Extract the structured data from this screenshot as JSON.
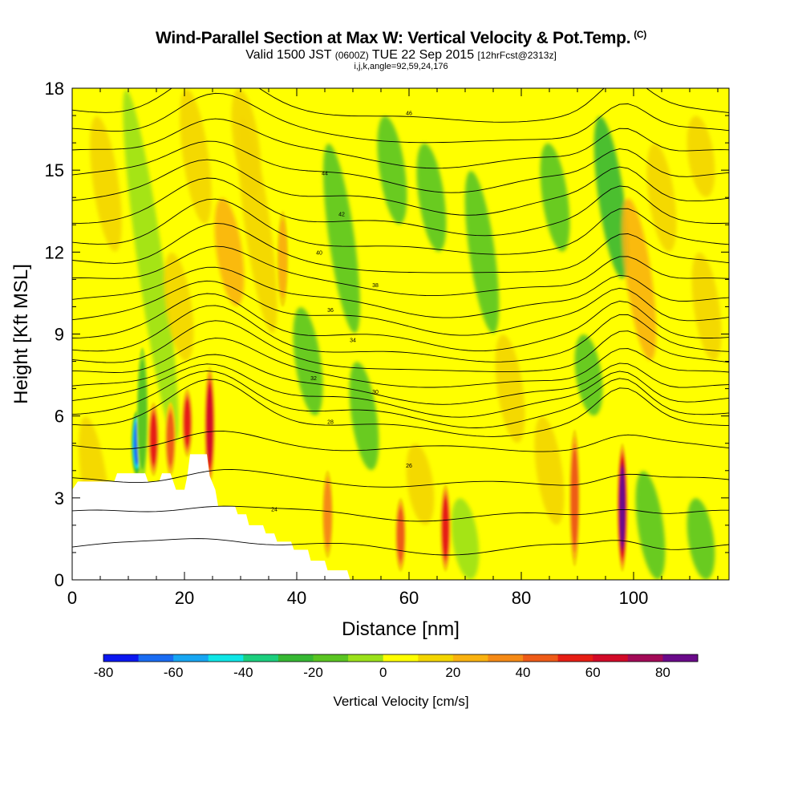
{
  "header": {
    "title": "Wind-Parallel Section at Max W: Vertical Velocity & Pot.Temp.",
    "copyright": "(C)",
    "valid_prefix": "Valid 1500 JST",
    "valid_utc": "(0600Z)",
    "valid_date": "TUE 22 Sep 2015",
    "forecast_info": "[12hrFcst@2313z]",
    "indices": "i,j,k,angle=92,59,24,176"
  },
  "chart_data": {
    "type": "heatmap",
    "xlabel": "Distance [nm]",
    "ylabel": "Height [Kft MSL]",
    "xlim": [
      0,
      117
    ],
    "ylim": [
      0,
      18
    ],
    "x_ticks": [
      "0",
      "20",
      "40",
      "60",
      "80",
      "100"
    ],
    "y_ticks": [
      "0",
      "3",
      "6",
      "9",
      "12",
      "15",
      "18"
    ],
    "colorbar": {
      "label": "Vertical Velocity [cm/s]",
      "min": -80,
      "max": 90,
      "ticks": [
        "-80",
        "-60",
        "-40",
        "-20",
        "0",
        "20",
        "40",
        "60",
        "80"
      ],
      "colors": [
        "#0b17f0",
        "#1a6cf2",
        "#17a6f2",
        "#0fe6e6",
        "#1ccf7e",
        "#36b833",
        "#5ac522",
        "#9be11b",
        "#ffff00",
        "#f3d500",
        "#f9b210",
        "#f58a16",
        "#ee5b18",
        "#e61e14",
        "#d20a28",
        "#a30a57",
        "#6a0a8a"
      ]
    },
    "vertical_velocity_features": [
      {
        "x": 11.5,
        "bottom": 3.8,
        "top": 6.2,
        "w": -70
      },
      {
        "x": 12.5,
        "bottom": 3.6,
        "top": 8.5,
        "w": -25
      },
      {
        "x": 14.5,
        "bottom": 3.8,
        "top": 6.5,
        "w": 50
      },
      {
        "x": 17.5,
        "bottom": 3.8,
        "top": 6.5,
        "w": 40
      },
      {
        "x": 20.5,
        "bottom": 4.5,
        "top": 7.0,
        "w": 50
      },
      {
        "x": 24.5,
        "bottom": 3.5,
        "top": 7.8,
        "w": 65
      },
      {
        "x": 37.5,
        "bottom": 10.0,
        "top": 13.5,
        "w": 25
      },
      {
        "x": 45.5,
        "bottom": 0.8,
        "top": 4.0,
        "w": 30
      },
      {
        "x": 58.5,
        "bottom": 0.3,
        "top": 3.0,
        "w": 40
      },
      {
        "x": 66.5,
        "bottom": 0.3,
        "top": 3.5,
        "w": 55
      },
      {
        "x": 89.5,
        "bottom": 0.5,
        "top": 5.5,
        "w": 40
      },
      {
        "x": 98.0,
        "bottom": 0.3,
        "top": 5.0,
        "w": 85
      }
    ],
    "theta_contour_labels": [
      "46",
      "44",
      "42",
      "40",
      "38",
      "36",
      "34",
      "32",
      "30",
      "28",
      "26",
      "24"
    ]
  }
}
